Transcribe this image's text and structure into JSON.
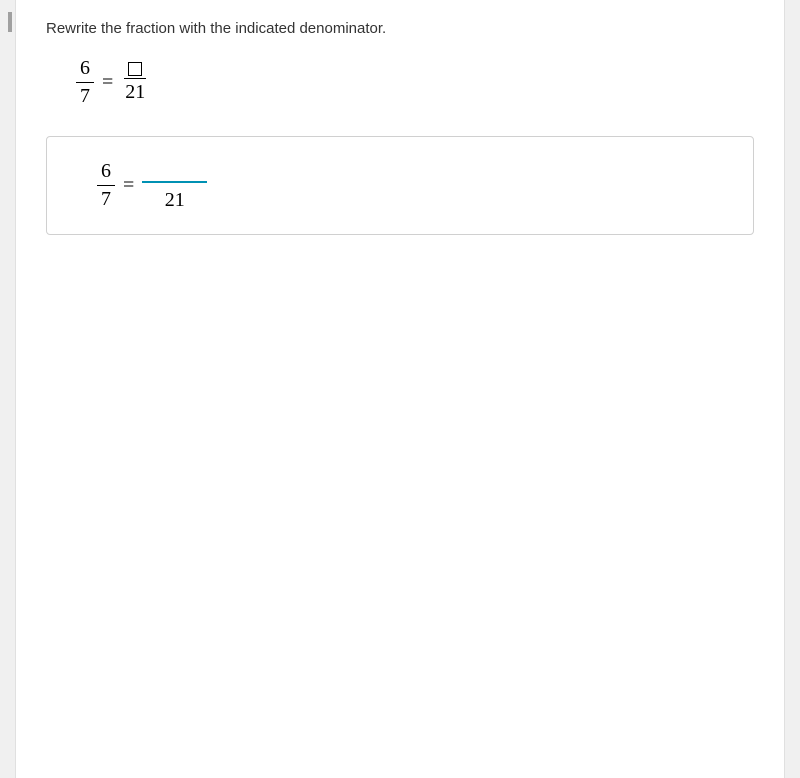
{
  "instruction": "Rewrite the fraction with the indicated denominator.",
  "problem": {
    "left_numerator": "6",
    "left_denominator": "7",
    "right_denominator": "21"
  },
  "answer": {
    "left_numerator": "6",
    "left_denominator": "7",
    "right_denominator": "21",
    "input_value": ""
  },
  "styling": {
    "input_line_color": "#0091b3",
    "border_color": "#d0d0d0",
    "text_color": "#333333",
    "background_color": "#ffffff",
    "page_background": "#f5f5f5",
    "fraction_font": "Times New Roman",
    "body_font_size": 15,
    "fraction_font_size": 20
  }
}
